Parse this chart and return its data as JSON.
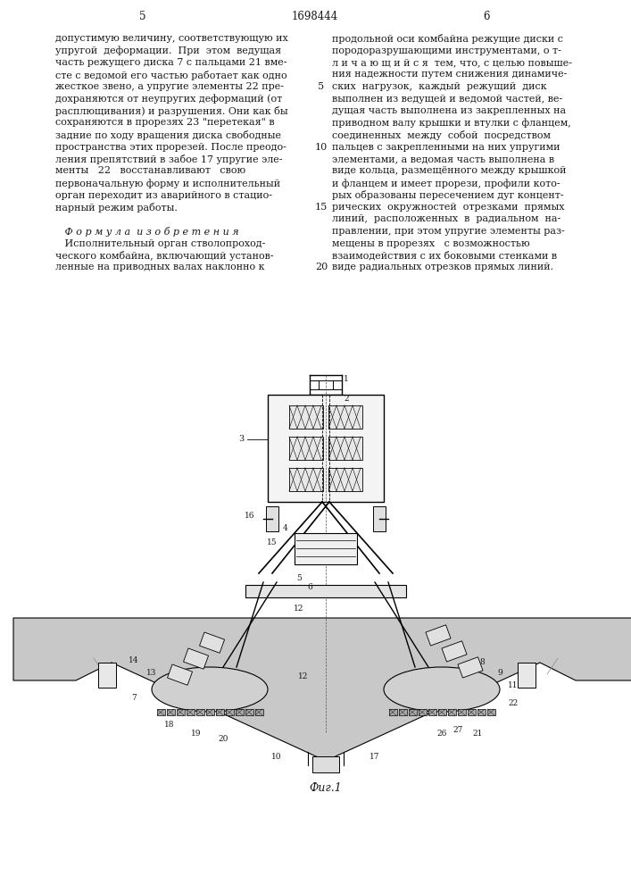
{
  "page_number_left": "5",
  "page_number_center": "1698444",
  "page_number_right": "6",
  "background_color": "#ffffff",
  "text_color": "#1a1a1a",
  "left_column_text": [
    "допустимую величину, соответствующую их",
    "упругой  деформации.  При  этом  ведущая",
    "часть режущего диска 7 с пальцами 21 вме-",
    "сте с ведомой его частью работает как одно",
    "жесткое звено, а упругие элементы 22 пре-",
    "дохраняются от неупругих деформаций (от",
    "расплющивания) и разрушения. Они как бы",
    "сохраняются в прорезях 23 \"перетекая\" в",
    "задние по ходу вращения диска свободные",
    "пространства этих прорезей. После преодо-",
    "ления препятствий в забое 17 упругие эле-",
    "менты   22   восстанавливают   свою",
    "первоначальную форму и исполнительный",
    "орган переходит из аварийного в стацио-",
    "нарный режим работы.",
    "",
    "   Ф о р м у л а  и з о б р е т е н и я",
    "   Исполнительный орган стволопроход-",
    "ческого комбайна, включающий установ-",
    "ленные на приводных валах наклонно к"
  ],
  "right_column_text": [
    "продольной оси комбайна режущие диски с",
    "породоразрушающими инструментами, о т-",
    "л и ч а ю щ и й с я  тем, что, с целью повыше-",
    "ния надежности путем снижения динамиче-",
    "ских  нагрузок,  каждый  режущий  диск",
    "выполнен из ведущей и ведомой частей, ве-",
    "дущая часть выполнена из закрепленных на",
    "приводном валу крышки и втулки с фланцем,",
    "соединенных  между  собой  посредством",
    "пальцев с закрепленными на них упругими",
    "элементами, а ведомая часть выполнена в",
    "виде кольца, размещённого между крышкой",
    "и фланцем и имеет прорези, профили кото-",
    "рых образованы пересечением дуг концент-",
    "рических  окружностей  отрезками  прямых",
    "линий,  расположенных  в  радиальном  на-",
    "правлении, при этом упругие элементы раз-",
    "мещены в прорезях   с возможностью",
    "взаимодействия с их боковыми стенками в",
    "виде радиальных отрезков прямых линий."
  ],
  "line_num_rows": [
    4,
    9,
    14,
    19
  ],
  "line_num_labels": [
    "5",
    "10",
    "15",
    "20"
  ],
  "figure_caption": "Фиг.1"
}
